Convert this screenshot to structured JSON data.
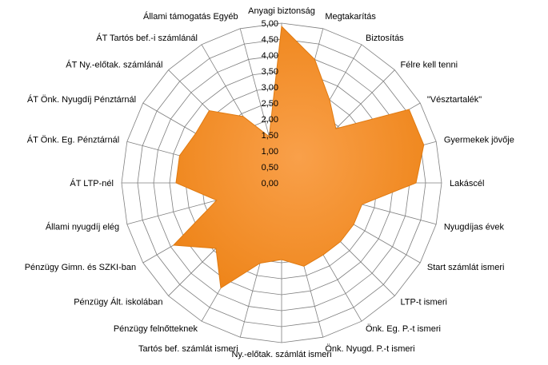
{
  "chart_data": {
    "type": "radar",
    "title": "",
    "categories": [
      "Anyagi biztonság",
      "Megtakarítás",
      "Biztosítás",
      "Félre kell tenni",
      "\"Vésztartalék\"",
      "Gyermekek jövője",
      "Lakáscél",
      "Nyugdíjas évek",
      "Start számlát  ismeri",
      "LTP-t ismeri",
      "Önk. Eg. P.-t ismeri",
      "Önk. Nyugd.  P.-t ismeri",
      "Ny.-előtak.  számlát  ismeri",
      "Tartós bef.  számlát  ismeri",
      "Pénzügy felnőtteknek",
      "Pénzügy Ált.  iskolában",
      "Pénzügy Gimn.  és SZKI-ban",
      "Állami nyugdíj elég",
      "ÁT  LTP-nél",
      "ÁT Önk. Eg.  Pénztárnál",
      "ÁT Önk. Nyugdíj  Pénztárnál",
      "ÁT Ny.-előtak.  számlánál",
      "ÁT Tartós bef.-i  számlánál",
      "Állami támogatás  Egyéb"
    ],
    "series": [
      {
        "name": "",
        "values": [
          4.9,
          4.0,
          3.0,
          2.4,
          4.6,
          4.6,
          4.2,
          2.6,
          2.6,
          2.6,
          2.6,
          2.7,
          2.4,
          2.6,
          3.8,
          2.9,
          3.9,
          2.1,
          3.3,
          3.3,
          3.1,
          3.2,
          2.4,
          1.5
        ],
        "color": "#F58A1F"
      }
    ],
    "ylim": [
      0,
      5
    ],
    "ticks": [
      "0,00",
      "0,50",
      "1,00",
      "1,50",
      "2,00",
      "2,50",
      "3,00",
      "3,50",
      "4,00",
      "4,50",
      "5,00"
    ],
    "grid": true,
    "legend": "none"
  }
}
